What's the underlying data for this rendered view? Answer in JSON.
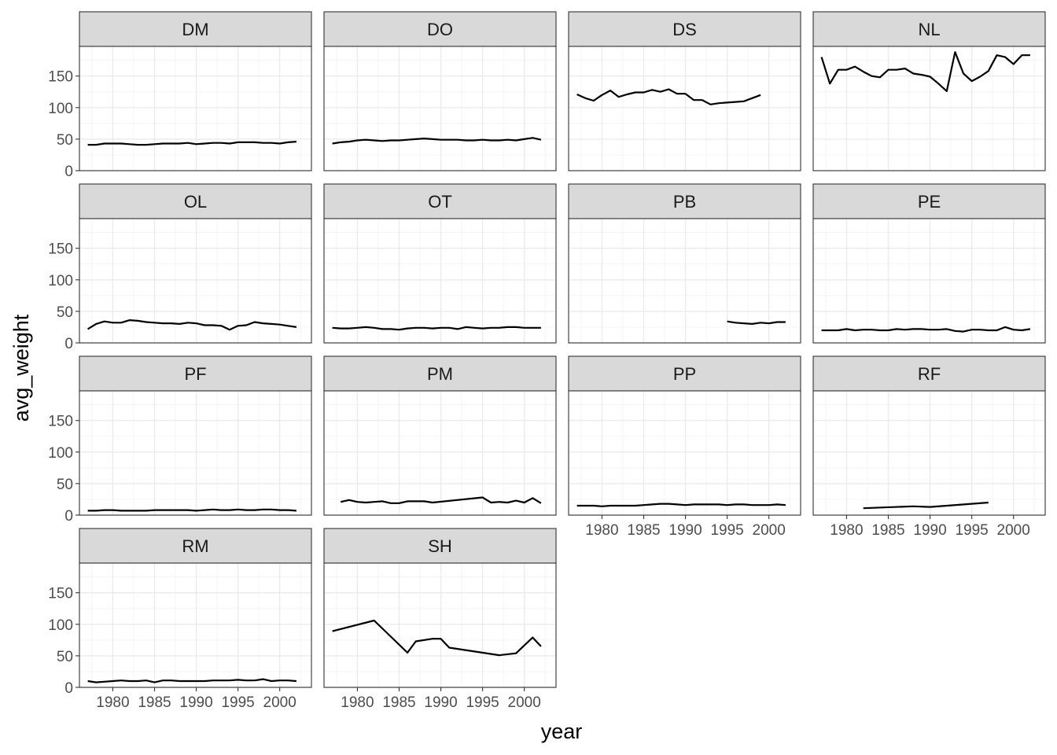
{
  "chart_data": {
    "type": "line",
    "facet_layout": "wrap",
    "xlabel": "year",
    "ylabel": "avg_weight",
    "xlim": [
      1976,
      2003.8
    ],
    "ylim": [
      0,
      197
    ],
    "x_ticks": [
      1980,
      1985,
      1990,
      1995,
      2000
    ],
    "y_ticks": [
      0,
      50,
      100,
      150
    ],
    "grid": true,
    "line_color": "#000000",
    "panels": [
      {
        "name": "DM",
        "x": [
          1977,
          1978,
          1979,
          1980,
          1981,
          1982,
          1983,
          1984,
          1985,
          1986,
          1987,
          1988,
          1989,
          1990,
          1991,
          1992,
          1993,
          1994,
          1995,
          1996,
          1997,
          1998,
          1999,
          2000,
          2001,
          2002
        ],
        "y": [
          41,
          41,
          43,
          43,
          43,
          42,
          41,
          41,
          42,
          43,
          43,
          43,
          44,
          42,
          43,
          44,
          44,
          43,
          45,
          45,
          45,
          44,
          44,
          43,
          45,
          46
        ]
      },
      {
        "name": "DO",
        "x": [
          1977,
          1978,
          1979,
          1980,
          1981,
          1982,
          1983,
          1984,
          1985,
          1986,
          1987,
          1988,
          1989,
          1990,
          1991,
          1992,
          1993,
          1994,
          1995,
          1996,
          1997,
          1998,
          1999,
          2000,
          2001,
          2002
        ],
        "y": [
          43,
          45,
          46,
          48,
          49,
          48,
          47,
          48,
          48,
          49,
          50,
          51,
          50,
          49,
          49,
          49,
          48,
          48,
          49,
          48,
          48,
          49,
          48,
          50,
          52,
          49
        ]
      },
      {
        "name": "DS",
        "x": [
          1977,
          1978,
          1979,
          1980,
          1981,
          1982,
          1983,
          1984,
          1985,
          1986,
          1987,
          1988,
          1989,
          1990,
          1991,
          1992,
          1993,
          1994,
          1995,
          1996,
          1997,
          1998,
          1999
        ],
        "y": [
          121,
          115,
          111,
          120,
          127,
          117,
          121,
          124,
          124,
          128,
          125,
          129,
          122,
          122,
          112,
          112,
          105,
          107,
          108,
          109,
          110,
          115,
          120
        ]
      },
      {
        "name": "NL",
        "x": [
          1977,
          1978,
          1979,
          1980,
          1981,
          1982,
          1983,
          1984,
          1985,
          1986,
          1987,
          1988,
          1989,
          1990,
          1991,
          1992,
          1993,
          1994,
          1995,
          1996,
          1997,
          1998,
          1999,
          2000,
          2001,
          2002
        ],
        "y": [
          180,
          138,
          160,
          160,
          165,
          157,
          150,
          148,
          160,
          160,
          162,
          154,
          152,
          149,
          138,
          126,
          188,
          154,
          142,
          149,
          158,
          183,
          180,
          169,
          183,
          183
        ]
      },
      {
        "name": "OL",
        "x": [
          1977,
          1978,
          1979,
          1980,
          1981,
          1982,
          1983,
          1984,
          1985,
          1986,
          1987,
          1988,
          1989,
          1990,
          1991,
          1992,
          1993,
          1994,
          1995,
          1996,
          1997,
          1998,
          1999,
          2000,
          2001,
          2002
        ],
        "y": [
          22,
          30,
          34,
          32,
          32,
          36,
          35,
          33,
          32,
          31,
          31,
          30,
          32,
          31,
          28,
          28,
          27,
          21,
          27,
          28,
          33,
          31,
          30,
          29,
          27,
          25
        ]
      },
      {
        "name": "OT",
        "x": [
          1977,
          1978,
          1979,
          1980,
          1981,
          1982,
          1983,
          1984,
          1985,
          1986,
          1987,
          1988,
          1989,
          1990,
          1991,
          1992,
          1993,
          1994,
          1995,
          1996,
          1997,
          1998,
          1999,
          2000,
          2001,
          2002
        ],
        "y": [
          24,
          23,
          23,
          24,
          25,
          24,
          22,
          22,
          21,
          23,
          24,
          24,
          23,
          24,
          24,
          22,
          25,
          24,
          23,
          24,
          24,
          25,
          25,
          24,
          24,
          24
        ]
      },
      {
        "name": "PB",
        "x": [
          1995,
          1996,
          1997,
          1998,
          1999,
          2000,
          2001,
          2002
        ],
        "y": [
          34,
          32,
          31,
          30,
          32,
          31,
          33,
          33
        ]
      },
      {
        "name": "PE",
        "x": [
          1977,
          1978,
          1979,
          1980,
          1981,
          1982,
          1983,
          1984,
          1985,
          1986,
          1987,
          1988,
          1989,
          1990,
          1991,
          1992,
          1993,
          1994,
          1995,
          1996,
          1997,
          1998,
          1999,
          2000,
          2001,
          2002
        ],
        "y": [
          20,
          20,
          20,
          22,
          20,
          21,
          21,
          20,
          20,
          22,
          21,
          22,
          22,
          21,
          21,
          22,
          19,
          18,
          21,
          21,
          20,
          20,
          25,
          21,
          20,
          22
        ]
      },
      {
        "name": "PF",
        "x": [
          1977,
          1978,
          1979,
          1980,
          1981,
          1982,
          1983,
          1984,
          1985,
          1986,
          1987,
          1988,
          1989,
          1990,
          1991,
          1992,
          1993,
          1994,
          1995,
          1996,
          1997,
          1998,
          1999,
          2000,
          2001,
          2002
        ],
        "y": [
          7,
          7,
          8,
          8,
          7,
          7,
          7,
          7,
          8,
          8,
          8,
          8,
          8,
          7,
          8,
          9,
          8,
          8,
          9,
          8,
          8,
          9,
          9,
          8,
          8,
          7
        ]
      },
      {
        "name": "PM",
        "x": [
          1978,
          1979,
          1980,
          1981,
          1982,
          1983,
          1984,
          1985,
          1986,
          1987,
          1988,
          1989,
          1995,
          1996,
          1997,
          1998,
          1999,
          2000,
          2001,
          2002
        ],
        "y": [
          21,
          24,
          21,
          20,
          21,
          22,
          19,
          19,
          22,
          22,
          22,
          20,
          28,
          20,
          21,
          20,
          23,
          20,
          27,
          19
        ]
      },
      {
        "name": "PP",
        "x": [
          1977,
          1978,
          1979,
          1980,
          1981,
          1982,
          1983,
          1984,
          1985,
          1986,
          1987,
          1988,
          1989,
          1990,
          1991,
          1992,
          1993,
          1994,
          1995,
          1996,
          1997,
          1998,
          1999,
          2000,
          2001,
          2002
        ],
        "y": [
          15,
          15,
          15,
          14,
          15,
          15,
          15,
          15,
          16,
          17,
          18,
          18,
          17,
          16,
          17,
          17,
          17,
          17,
          16,
          17,
          17,
          16,
          16,
          16,
          17,
          16
        ]
      },
      {
        "name": "RF",
        "x": [
          1982,
          1988,
          1990,
          1997
        ],
        "y": [
          11,
          14,
          13,
          20
        ]
      },
      {
        "name": "RM",
        "x": [
          1977,
          1978,
          1979,
          1980,
          1981,
          1982,
          1983,
          1984,
          1985,
          1986,
          1987,
          1988,
          1989,
          1990,
          1991,
          1992,
          1993,
          1994,
          1995,
          1996,
          1997,
          1998,
          1999,
          2000,
          2001,
          2002
        ],
        "y": [
          10,
          8,
          9,
          10,
          11,
          10,
          10,
          11,
          8,
          11,
          11,
          10,
          10,
          10,
          10,
          11,
          11,
          11,
          12,
          11,
          11,
          13,
          10,
          11,
          11,
          10
        ]
      },
      {
        "name": "SH",
        "x": [
          1977,
          1982,
          1986,
          1987,
          1989,
          1990,
          1991,
          1997,
          1999,
          2001,
          2002
        ],
        "y": [
          89,
          106,
          55,
          73,
          77,
          77,
          63,
          51,
          54,
          79,
          65
        ]
      }
    ]
  }
}
